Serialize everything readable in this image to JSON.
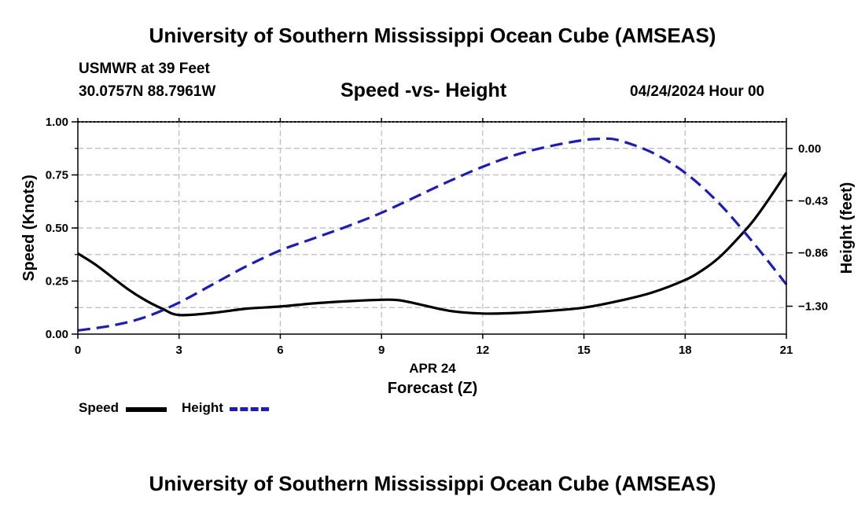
{
  "page": {
    "title_top": "University of Southern Mississippi Ocean Cube (AMSEAS)",
    "title_bottom": "University of Southern Mississippi Ocean Cube (AMSEAS)",
    "station": "USMWR at 39 Feet",
    "coords": "30.0757N  88.7961W",
    "date": "04/24/2024 Hour 00"
  },
  "colors": {
    "speed": "#000000",
    "height": "#1a1acc",
    "grid": "#bbbbbb"
  },
  "chart_data": {
    "type": "line",
    "title": "Speed -vs- Height",
    "xlabel": "Forecast (Z)",
    "date_label": "APR 24",
    "ylabel_left": "Speed (Knots)",
    "ylabel_right": "Height (feet)",
    "xlim": [
      0,
      21
    ],
    "ylim_left": [
      0,
      1.0
    ],
    "ylim_right": [
      -1.53,
      0.22
    ],
    "x_ticks": [
      0,
      3,
      6,
      9,
      12,
      15,
      18,
      21
    ],
    "x_tick_labels": [
      "0",
      "3",
      "6",
      "9",
      "12",
      "15",
      "18",
      "21"
    ],
    "y_left_ticks": [
      0,
      0.25,
      0.5,
      0.75,
      1.0
    ],
    "y_left_tick_labels": [
      "0.00",
      "0.25",
      "0.50",
      "0.75",
      "1.00"
    ],
    "y_right_ticks": [
      0.0,
      -0.43,
      -0.86,
      -1.3
    ],
    "y_right_tick_labels": [
      "0.00",
      "−0.43",
      "−0.86",
      "−1.30"
    ],
    "grid": true,
    "legend": [
      {
        "name": "Speed",
        "style": "solid"
      },
      {
        "name": "Height",
        "style": "dashed"
      }
    ],
    "series": [
      {
        "name": "Speed",
        "axis": "left",
        "style": "solid",
        "x": [
          0,
          0.5,
          1,
          1.5,
          2,
          2.5,
          3,
          4,
          5,
          6,
          7,
          8,
          9,
          9.5,
          10,
          11,
          12,
          13,
          14,
          15,
          16,
          17,
          18,
          18.5,
          19,
          19.5,
          20,
          20.5,
          21
        ],
        "y": [
          0.38,
          0.33,
          0.27,
          0.21,
          0.16,
          0.12,
          0.09,
          0.1,
          0.12,
          0.13,
          0.145,
          0.155,
          0.162,
          0.16,
          0.145,
          0.11,
          0.097,
          0.1,
          0.11,
          0.125,
          0.155,
          0.195,
          0.255,
          0.3,
          0.36,
          0.44,
          0.53,
          0.64,
          0.76
        ]
      },
      {
        "name": "Height",
        "axis": "right",
        "style": "dashed",
        "x": [
          0,
          1,
          2,
          3,
          4,
          5,
          6,
          7,
          8,
          9,
          10,
          11,
          12,
          13,
          14,
          15,
          15.5,
          16,
          17,
          18,
          19,
          20,
          21
        ],
        "y": [
          -1.5,
          -1.46,
          -1.39,
          -1.27,
          -1.12,
          -0.97,
          -0.84,
          -0.74,
          -0.64,
          -0.53,
          -0.4,
          -0.27,
          -0.15,
          -0.05,
          0.02,
          0.07,
          0.08,
          0.07,
          -0.03,
          -0.2,
          -0.45,
          -0.77,
          -1.12
        ]
      }
    ]
  }
}
